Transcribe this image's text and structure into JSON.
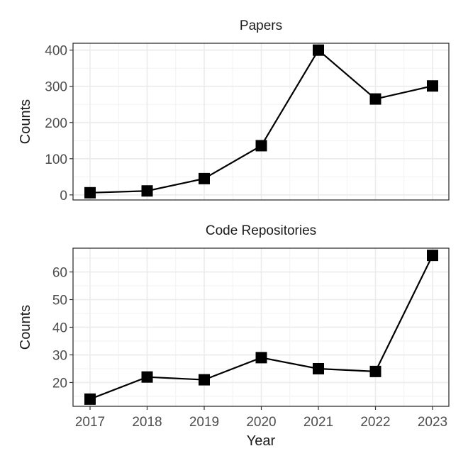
{
  "chart_data": [
    {
      "type": "line",
      "title": "Papers",
      "xlabel": "",
      "ylabel": "Counts",
      "x": [
        "2017",
        "2018",
        "2019",
        "2020",
        "2021",
        "2022",
        "2023"
      ],
      "values": [
        6,
        11,
        45,
        136,
        400,
        265,
        301
      ],
      "yticks": [
        0,
        100,
        200,
        300,
        400
      ],
      "ylim": [
        -14,
        419
      ],
      "grid": true,
      "marker": "square",
      "color": "#000000"
    },
    {
      "type": "line",
      "title": "Code Repositories",
      "xlabel": "Year",
      "ylabel": "Counts",
      "x": [
        "2017",
        "2018",
        "2019",
        "2020",
        "2021",
        "2022",
        "2023"
      ],
      "values": [
        14,
        22,
        21,
        29,
        25,
        24,
        66
      ],
      "yticks": [
        20,
        30,
        40,
        50,
        60
      ],
      "ylim": [
        11.4,
        68.6
      ],
      "grid": true,
      "marker": "square",
      "color": "#000000"
    }
  ]
}
